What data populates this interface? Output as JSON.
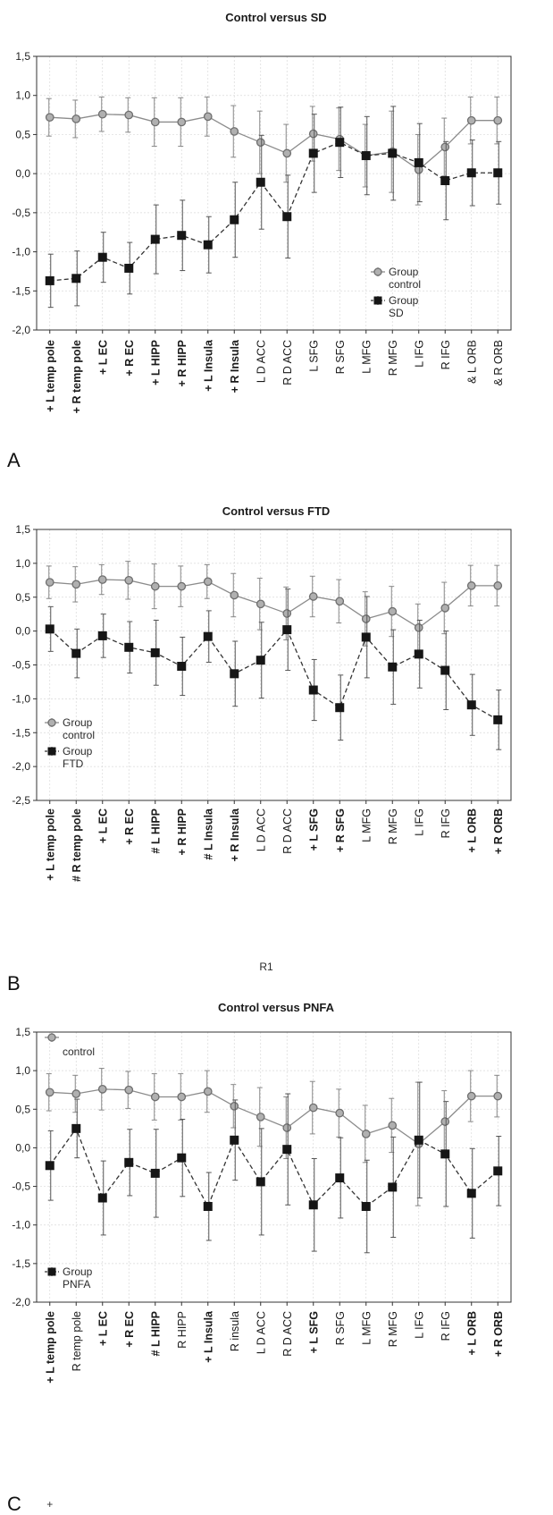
{
  "chart_data": [
    {
      "type": "line",
      "panel_label": "A",
      "title": "Control versus SD",
      "categories": [
        "+ L temp pole",
        "+ R temp pole",
        "+ L EC",
        "+ R EC",
        "+ L HIPP",
        "+ R HIPP",
        "+ L Insula",
        "+ R Insula",
        "L D ACC",
        "R D ACC",
        "L SFG",
        "R SFG",
        "L MFG",
        "R MFG",
        "L IFG",
        "R IFG",
        "& L ORB",
        "& R ORB"
      ],
      "bold": [
        true,
        true,
        true,
        true,
        true,
        true,
        true,
        true,
        false,
        false,
        false,
        false,
        false,
        false,
        false,
        false,
        false,
        false
      ],
      "ylim": [
        -2.0,
        1.5
      ],
      "yticks": [
        "-2,0",
        "-1,5",
        "-1,0",
        "-0,5",
        "0,0",
        "0,5",
        "1,0",
        "1,5"
      ],
      "grid": true,
      "legend_position": "lower-right",
      "legend": [
        "Group",
        "control",
        "Group",
        "SD"
      ],
      "series": [
        {
          "name": "control",
          "values": [
            0.72,
            0.7,
            0.76,
            0.75,
            0.66,
            0.66,
            0.73,
            0.54,
            0.4,
            0.26,
            0.51,
            0.44,
            0.23,
            0.28,
            0.05,
            0.34,
            0.68,
            0.68
          ],
          "err": [
            0.24,
            0.24,
            0.22,
            0.22,
            0.31,
            0.31,
            0.25,
            0.33,
            0.4,
            0.37,
            0.35,
            0.4,
            0.4,
            0.52,
            0.45,
            0.37,
            0.3,
            0.3
          ]
        },
        {
          "name": "SD",
          "values": [
            -1.37,
            -1.34,
            -1.07,
            -1.21,
            -0.84,
            -0.79,
            -0.91,
            -0.59,
            -0.11,
            -0.55,
            0.26,
            0.4,
            0.23,
            0.26,
            0.14,
            -0.09,
            0.01,
            0.01
          ],
          "err": [
            0.34,
            0.35,
            0.32,
            0.33,
            0.44,
            0.45,
            0.36,
            0.48,
            0.6,
            0.53,
            0.5,
            0.45,
            0.5,
            0.6,
            0.5,
            0.5,
            0.42,
            0.4
          ]
        }
      ]
    },
    {
      "type": "line",
      "panel_label": "B",
      "title": "Control versus FTD",
      "xlabel": "R1",
      "categories": [
        "+ L temp pole",
        "# R temp pole",
        "+ L EC",
        "+ R EC",
        "# L HIPP",
        "+ R HIPP",
        "# L Insula",
        "+ R Insula",
        "L D ACC",
        "R D ACC",
        "+ L SFG",
        "+ R SFG",
        "L MFG",
        "R MFG",
        "L IFG",
        "R IFG",
        "+ L ORB",
        "+ R ORB"
      ],
      "bold": [
        true,
        true,
        true,
        true,
        true,
        true,
        true,
        true,
        false,
        false,
        true,
        true,
        false,
        false,
        false,
        false,
        true,
        true
      ],
      "ylim": [
        -2.5,
        1.5
      ],
      "yticks": [
        "-2,5",
        "-2,0",
        "-1,5",
        "-1,0",
        "-0,5",
        "0,0",
        "0,5",
        "1,0",
        "1,5"
      ],
      "grid": true,
      "legend_position": "lower-left",
      "legend": [
        "Group",
        "control",
        "Group",
        "FTD"
      ],
      "series": [
        {
          "name": "control",
          "values": [
            0.72,
            0.69,
            0.76,
            0.75,
            0.66,
            0.66,
            0.73,
            0.53,
            0.4,
            0.26,
            0.51,
            0.44,
            0.18,
            0.29,
            0.05,
            0.34,
            0.67,
            0.67
          ],
          "err": [
            0.24,
            0.26,
            0.22,
            0.28,
            0.33,
            0.3,
            0.25,
            0.32,
            0.38,
            0.39,
            0.3,
            0.32,
            0.4,
            0.37,
            0.35,
            0.38,
            0.3,
            0.3
          ]
        },
        {
          "name": "FTD",
          "values": [
            0.03,
            -0.33,
            -0.07,
            -0.24,
            -0.32,
            -0.52,
            -0.08,
            -0.63,
            -0.43,
            0.02,
            -0.87,
            -1.13,
            -0.09,
            -0.53,
            -0.34,
            -0.58,
            -1.09,
            -1.31
          ],
          "err": [
            0.33,
            0.36,
            0.32,
            0.38,
            0.48,
            0.43,
            0.38,
            0.48,
            0.56,
            0.6,
            0.45,
            0.48,
            0.6,
            0.55,
            0.5,
            0.58,
            0.45,
            0.44
          ]
        }
      ]
    },
    {
      "type": "line",
      "panel_label": "C",
      "title": "Control versus PNFA",
      "categories": [
        "+ L temp pole",
        "R temp pole",
        "+ L EC",
        "+ R EC",
        "# L HIPP",
        "R HIPP",
        "+ L Insula",
        "R insula",
        "L D ACC",
        "R D ACC",
        "+ L SFG",
        "R SFG",
        "L MFG",
        "R MFG",
        "L IFG",
        "R IFG",
        "+ L ORB",
        "+ R ORB"
      ],
      "bold": [
        true,
        false,
        true,
        true,
        true,
        false,
        true,
        false,
        false,
        false,
        true,
        false,
        false,
        false,
        false,
        false,
        true,
        true
      ],
      "extra_label": "+",
      "ylim": [
        -2.0,
        1.5
      ],
      "yticks": [
        "-2,0",
        "-1,5",
        "-1,0",
        "-0,5",
        "0,0",
        "0,5",
        "1,0",
        "1,5"
      ],
      "grid": true,
      "legend_position": "top-left and bottom-left",
      "legend": [
        "control",
        "Group",
        "PNFA"
      ],
      "series": [
        {
          "name": "control",
          "values": [
            0.72,
            0.7,
            0.76,
            0.75,
            0.66,
            0.66,
            0.73,
            0.54,
            0.4,
            0.26,
            0.52,
            0.45,
            0.18,
            0.29,
            0.05,
            0.34,
            0.67,
            0.67
          ],
          "err": [
            0.24,
            0.24,
            0.27,
            0.24,
            0.3,
            0.3,
            0.27,
            0.28,
            0.38,
            0.4,
            0.34,
            0.31,
            0.37,
            0.35,
            0.8,
            0.4,
            0.33,
            0.27
          ]
        },
        {
          "name": "PNFA",
          "values": [
            -0.23,
            0.25,
            -0.65,
            -0.19,
            -0.33,
            -0.13,
            -0.76,
            0.1,
            -0.44,
            -0.02,
            -0.74,
            -0.39,
            -0.76,
            -0.51,
            0.1,
            -0.08,
            -0.59,
            -0.3
          ],
          "err": [
            0.45,
            0.38,
            0.48,
            0.43,
            0.57,
            0.5,
            0.44,
            0.52,
            0.69,
            0.72,
            0.6,
            0.52,
            0.6,
            0.65,
            0.75,
            0.68,
            0.58,
            0.45
          ]
        }
      ]
    }
  ]
}
